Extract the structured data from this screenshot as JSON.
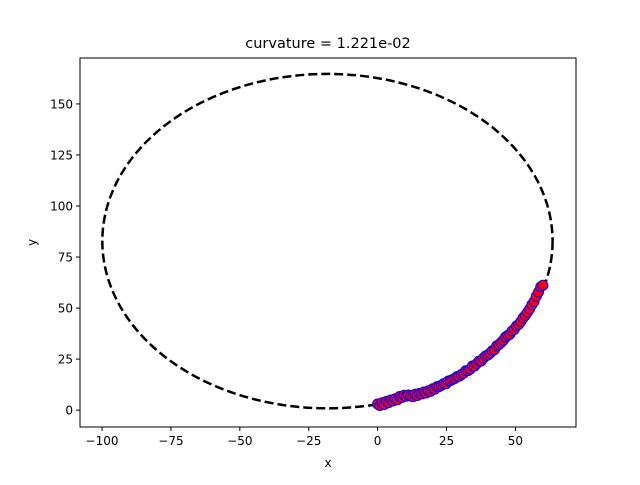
{
  "chart_data": {
    "type": "scatter",
    "title": "curvature = 1.221e-02",
    "xlabel": "x",
    "ylabel": "y",
    "xlim": [
      -108,
      72
    ],
    "ylim": [
      -8.25,
      172.5
    ],
    "xticks": [
      -100,
      -75,
      -50,
      -25,
      0,
      25,
      50
    ],
    "yticks": [
      0,
      25,
      50,
      75,
      100,
      125,
      150
    ],
    "grid": false,
    "fitted_circle": {
      "center_x": -18.2,
      "center_y": 82.8,
      "radius_x": 81.7,
      "radius_y": 81.9,
      "line_style": "dashed",
      "color": "#000000"
    },
    "points": {
      "face_color": "#ff0000",
      "edge_color": "#0000ff",
      "x": [
        0.0,
        0.8,
        1.6,
        2.4,
        3.2,
        4.0,
        4.8,
        5.6,
        6.4,
        7.2,
        8.0,
        8.8,
        9.6,
        10.4,
        11.2,
        12.0,
        12.8,
        13.6,
        14.4,
        15.2,
        16.0,
        16.8,
        17.6,
        18.4,
        19.2,
        20.0,
        20.8,
        21.6,
        22.4,
        23.2,
        24.0,
        24.8,
        25.6,
        26.4,
        27.2,
        28.0,
        28.8,
        29.6,
        30.4,
        31.2,
        32.0,
        32.8,
        33.6,
        34.4,
        35.2,
        36.0,
        36.8,
        37.6,
        38.4,
        39.2,
        40.0,
        40.8,
        41.6,
        42.4,
        43.2,
        44.0,
        44.8,
        45.6,
        46.4,
        47.2,
        48.0,
        48.8,
        49.6,
        50.4,
        51.2,
        52.0,
        52.8,
        53.6,
        54.4,
        55.2,
        56.0,
        56.8,
        57.6,
        58.4,
        59.2,
        60.0
      ],
      "y": [
        3.0,
        2.3,
        3.6,
        2.8,
        4.3,
        3.7,
        5.0,
        4.5,
        5.6,
        5.1,
        6.7,
        6.2,
        7.3,
        6.8,
        7.4,
        7.0,
        6.6,
        7.8,
        7.2,
        8.2,
        7.9,
        8.9,
        8.4,
        9.5,
        9.2,
        10.5,
        10.3,
        11.5,
        11.6,
        12.2,
        13.0,
        12.9,
        14.2,
        14.5,
        15.0,
        15.5,
        16.4,
        16.6,
        17.4,
        18.1,
        19.3,
        19.4,
        20.1,
        21.6,
        21.6,
        22.8,
        24.0,
        24.1,
        25.5,
        26.5,
        27.0,
        27.9,
        29.1,
        29.6,
        31.4,
        32.1,
        33.1,
        34.2,
        35.8,
        36.6,
        37.2,
        38.8,
        39.6,
        41.2,
        42.0,
        43.4,
        45.2,
        46.4,
        48.0,
        49.6,
        51.7,
        53.2,
        55.8,
        57.9,
        60.4,
        61.2
      ]
    }
  }
}
